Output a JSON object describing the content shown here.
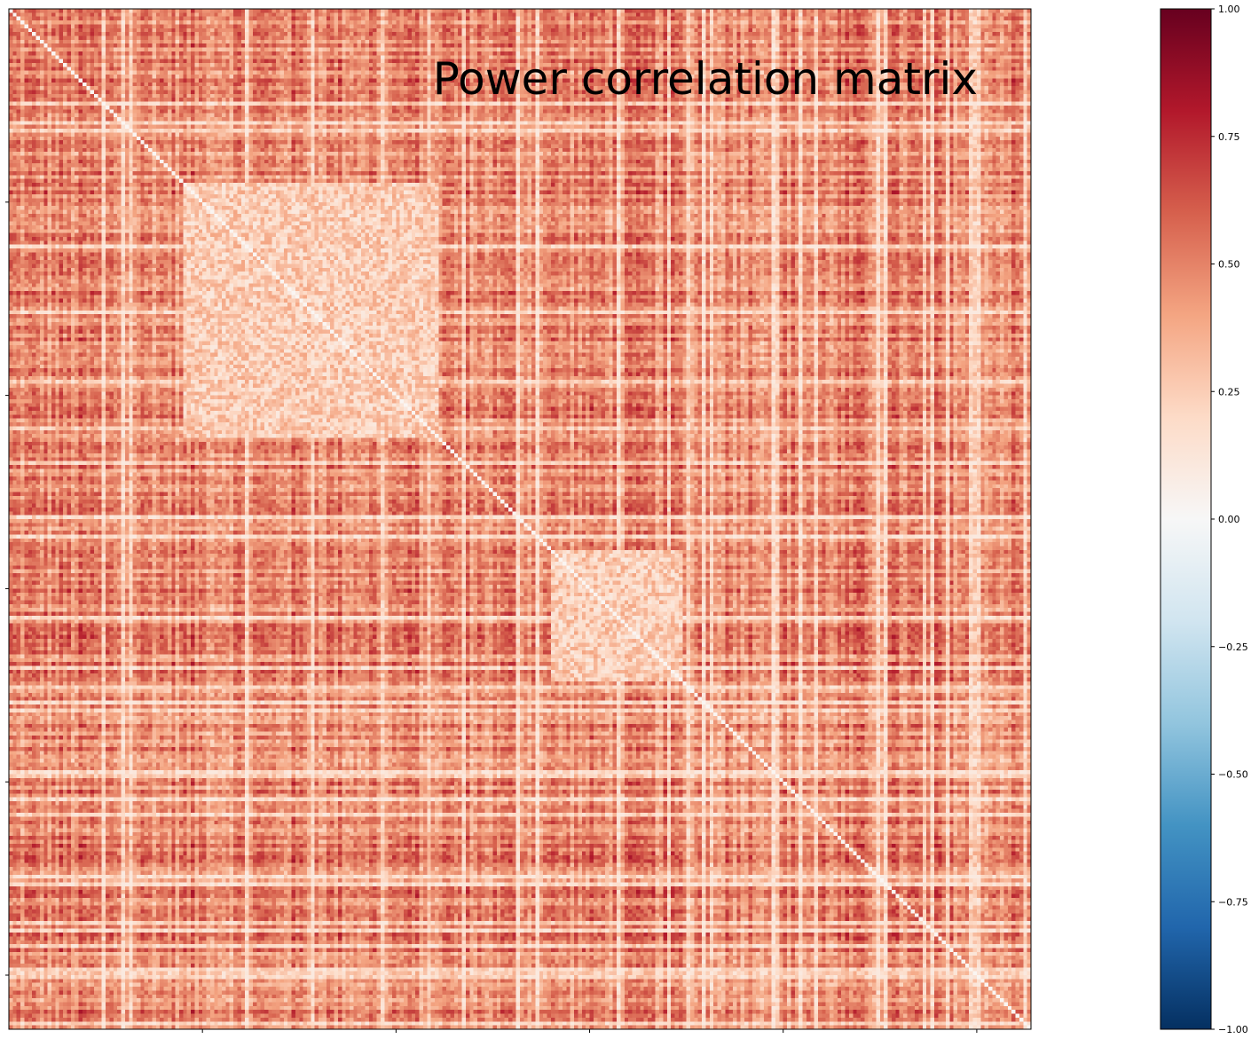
{
  "chart_data": {
    "type": "heatmap",
    "title": "Power correlation matrix",
    "xlabel": "",
    "ylabel": "",
    "n_regions": 264,
    "diagonal_value": 1.0,
    "typical_off_diagonal_range": [
      0.1,
      0.85
    ],
    "block_structure_note_values": {
      "bright_block_1": {
        "rows": [
          45,
          110
        ],
        "mean": 0.25
      },
      "bright_block_2": {
        "rows": [
          140,
          173
        ],
        "mean": 0.25
      }
    },
    "colorbar": {
      "colormap": "RdBu_r",
      "vmin": -1.0,
      "vmax": 1.0,
      "ticks": [
        1.0,
        0.75,
        0.5,
        0.25,
        0.0,
        -0.25,
        -0.5,
        -0.75,
        -1.0
      ],
      "tick_labels": [
        "1.00",
        "0.75",
        "0.50",
        "0.25",
        "0.00",
        "−0.25",
        "−0.50",
        "−0.75",
        "−1.00"
      ]
    },
    "x_ticks": [
      50,
      100,
      150,
      200,
      250
    ],
    "y_ticks": [
      50,
      100,
      150,
      200,
      250
    ],
    "grid": false,
    "legend": "colorbar-right"
  }
}
